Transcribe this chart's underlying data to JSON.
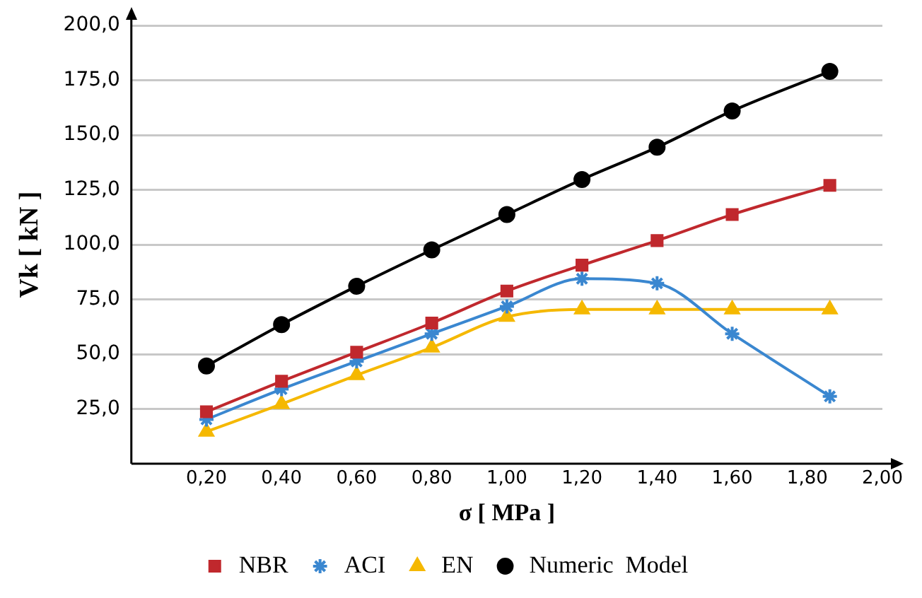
{
  "chart_data": {
    "type": "line",
    "xlabel": "σ [ MPa ]",
    "ylabel": "Vk [ kN ]",
    "xlim": [
      0,
      2.0
    ],
    "xticks": [
      {
        "value": 0.2,
        "label": "0,20"
      },
      {
        "value": 0.4,
        "label": "0,40"
      },
      {
        "value": 0.6,
        "label": "0,60"
      },
      {
        "value": 0.8,
        "label": "0,80"
      },
      {
        "value": 1.0,
        "label": "1,00"
      },
      {
        "value": 1.2,
        "label": "1,20"
      },
      {
        "value": 1.4,
        "label": "1,40"
      },
      {
        "value": 1.6,
        "label": "1,60"
      },
      {
        "value": 1.8,
        "label": "1,80"
      },
      {
        "value": 2.0,
        "label": "2,00"
      }
    ],
    "ylim": [
      0,
      200
    ],
    "yticks": [
      {
        "value": 25,
        "label": "25,0"
      },
      {
        "value": 50,
        "label": "50,0"
      },
      {
        "value": 75,
        "label": "75,0"
      },
      {
        "value": 100,
        "label": "100,0"
      },
      {
        "value": 125,
        "label": "125,0"
      },
      {
        "value": 150,
        "label": "150,0"
      },
      {
        "value": 175,
        "label": "175,0"
      },
      {
        "value": 200,
        "label": "200,0"
      }
    ],
    "x": [
      0.2,
      0.4,
      0.6,
      0.8,
      1.0,
      1.2,
      1.4,
      1.6,
      1.86
    ],
    "grid": "y",
    "legend": "bottom",
    "line_style": "solid",
    "series": [
      {
        "name": "NBR",
        "color": "#c0282d",
        "marker": "square",
        "values": [
          23.7,
          37.6,
          50.9,
          64.2,
          78.8,
          90.6,
          101.8,
          113.7,
          127
        ]
      },
      {
        "name": "ACI",
        "color": "#3a87d0",
        "marker": "cross",
        "values": [
          20.2,
          34,
          46.7,
          59.3,
          71.8,
          84.4,
          82.3,
          59.3,
          30.7
        ]
      },
      {
        "name": "EN",
        "color": "#f5b800",
        "marker": "triangle",
        "values": [
          14.6,
          27.2,
          40.4,
          53,
          67,
          70.4,
          70.4,
          70.4,
          70.4
        ]
      },
      {
        "name": "Numeric  Model",
        "color": "#000000",
        "marker": "circle",
        "values": [
          44.6,
          63.5,
          81,
          97.6,
          113.7,
          129.7,
          144.4,
          161,
          179
        ]
      }
    ]
  }
}
